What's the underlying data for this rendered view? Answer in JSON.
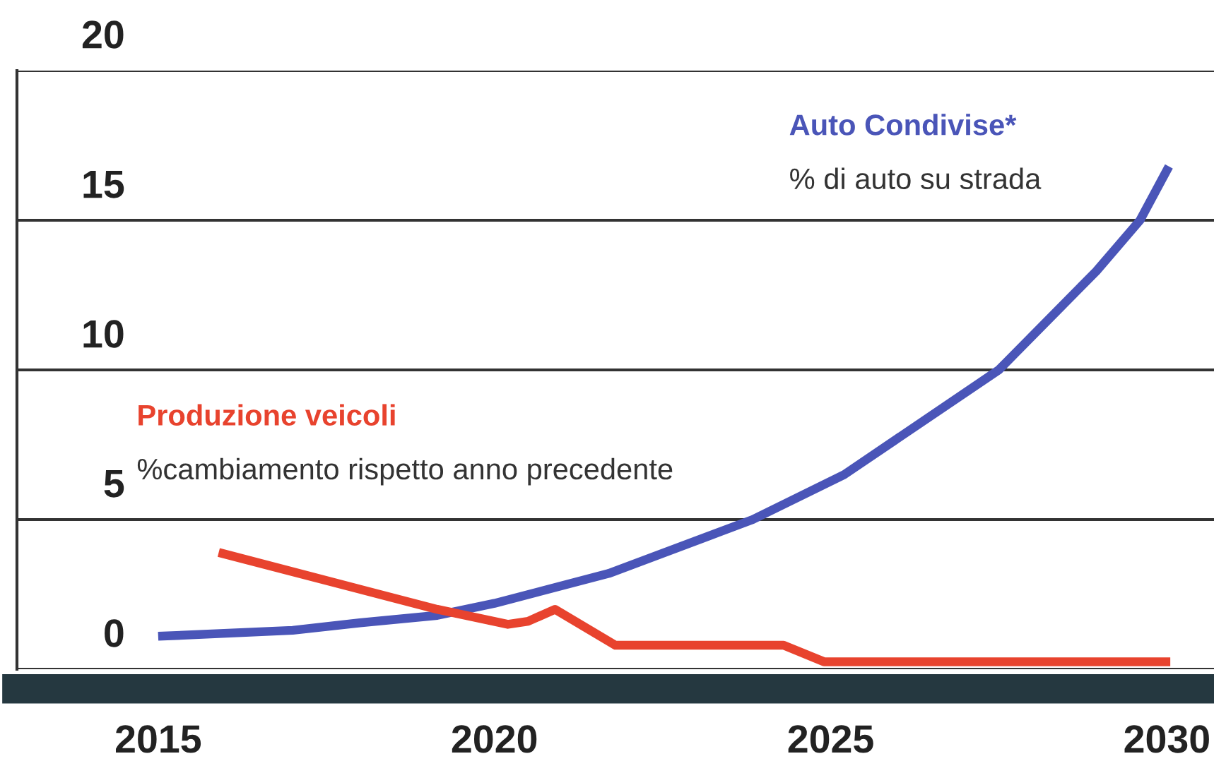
{
  "chart_data": {
    "type": "line",
    "xlim": [
      2012.9,
      2030.7
    ],
    "xticks": [
      2015,
      2020,
      2025,
      2030
    ],
    "ylim": [
      0,
      20
    ],
    "yticks": [
      0,
      5,
      10,
      15,
      20
    ],
    "grid": "y",
    "legend": false,
    "marker": "none",
    "line_style": "solid",
    "series": [
      {
        "name": "Auto Condivise*",
        "color": "#4a55b8",
        "x": [
          2015.0,
          2017.0,
          2018.0,
          2019.15,
          2020.0,
          2021.7,
          2023.84,
          2025.2,
          2027.5,
          2028.95,
          2029.6,
          2030.03
        ],
        "values": [
          1.1,
          1.3,
          1.55,
          1.8,
          2.2,
          3.2,
          5.0,
          6.5,
          10.0,
          13.3,
          15.0,
          16.8
        ]
      },
      {
        "name": "Produzione veicoli",
        "color": "#e8432e",
        "x": [
          2015.9,
          2019.15,
          2020.2,
          2020.5,
          2020.9,
          2021.8,
          2024.3,
          2024.9,
          2030.05
        ],
        "values": [
          3.9,
          2.0,
          1.5,
          1.6,
          2.0,
          0.8,
          0.8,
          0.25,
          0.25
        ]
      }
    ],
    "annotations": [
      "% di auto su strada",
      "%cambiamento rispetto anno precedente"
    ]
  }
}
